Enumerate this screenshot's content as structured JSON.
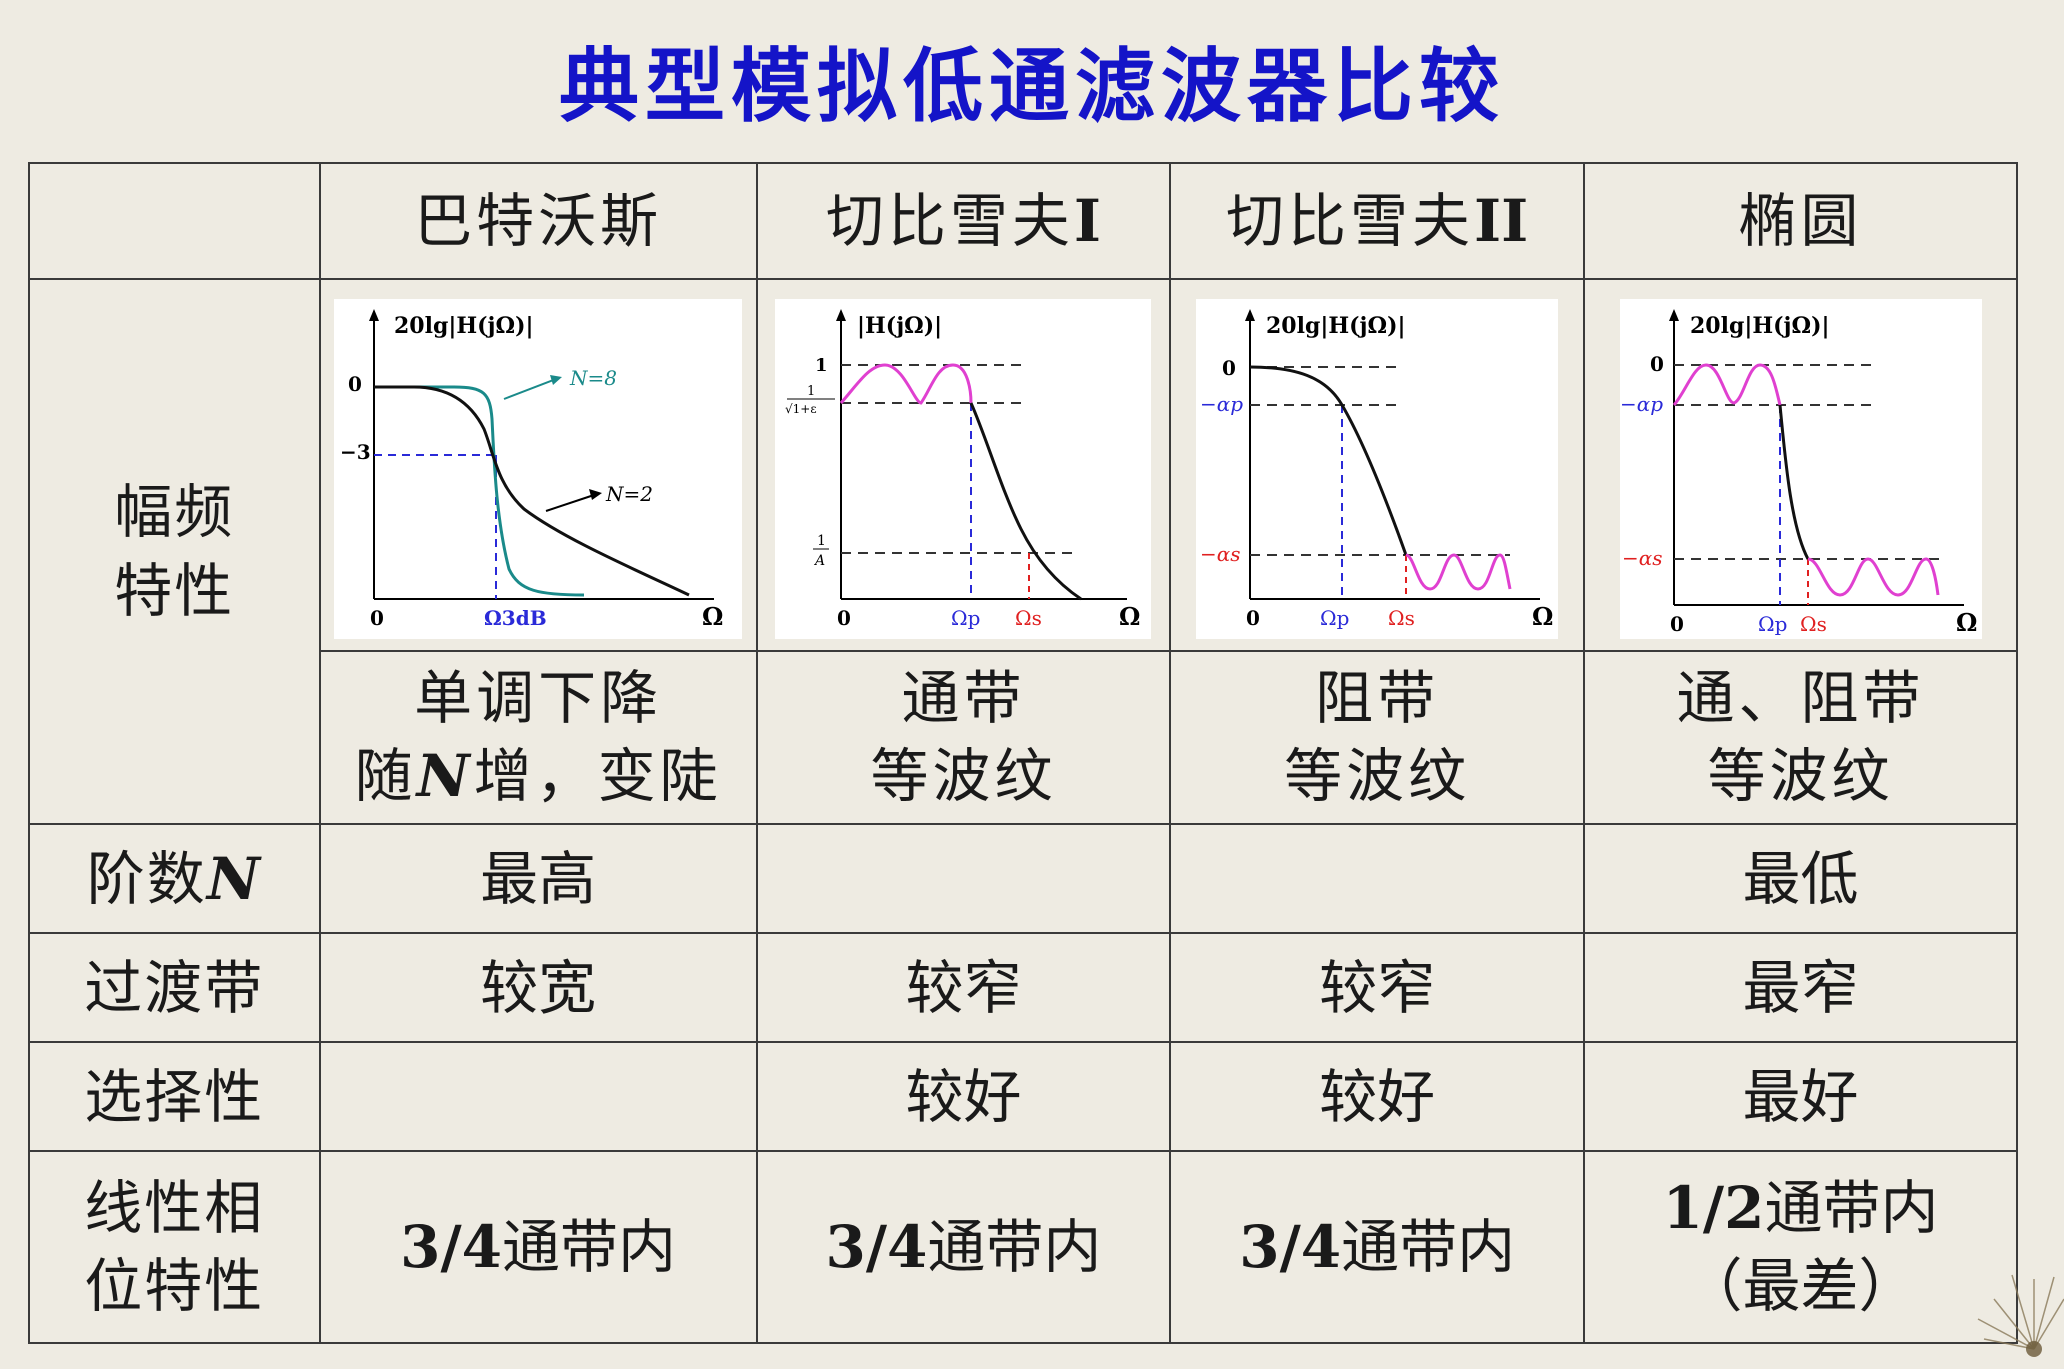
{
  "title": "典型模拟低通滤波器比较",
  "columns": [
    "巴特沃斯",
    "切比雪夫",
    "切比雪夫",
    "椭圆"
  ],
  "column_suffix": [
    "",
    "I",
    "II",
    ""
  ],
  "row_headers": {
    "amp_line1": "幅频",
    "amp_line2": "特性",
    "order_prefix": "阶数",
    "order_var": "N",
    "transition": "过渡带",
    "selectivity": "选择性",
    "phase_line1": "线性相",
    "phase_line2": "位特性"
  },
  "descriptions": [
    {
      "line1": "单调下降",
      "line2_a": "随",
      "line2_var": "N",
      "line2_b": "增，变陡"
    },
    {
      "line1": "通带",
      "line2": "等波纹"
    },
    {
      "line1": "阻带",
      "line2": "等波纹"
    },
    {
      "line1": "通、阻带",
      "line2": "等波纹"
    }
  ],
  "order": [
    "最高",
    "",
    "",
    "最低"
  ],
  "transition": [
    "较宽",
    "较窄",
    "较窄",
    "最窄"
  ],
  "selectivity": [
    "",
    "较好",
    "较好",
    "最好"
  ],
  "phase": [
    {
      "num": "3/4",
      "text": "通带内",
      "line2": ""
    },
    {
      "num": "3/4",
      "text": "通带内",
      "line2": ""
    },
    {
      "num": "3/4",
      "text": "通带内",
      "line2": ""
    },
    {
      "num": "1/2",
      "text": "通带内",
      "line2": "（最差）"
    }
  ],
  "plots": {
    "butterworth": {
      "ylabel": "20lg|H(jΩ)|",
      "y0": "0",
      "y3": "−3",
      "x0": "0",
      "xtick": "Ω3dB",
      "xaxis": "Ω",
      "n8": "N=8",
      "n2": "N=2"
    },
    "cheby1": {
      "ylabel": "|H(jΩ)|",
      "y1": "1",
      "yr_num": "1",
      "yr_den": "√1+ε",
      "ya_num": "1",
      "ya_den": "A",
      "x0": "0",
      "xp": "Ωp",
      "xs": "Ωs",
      "xaxis": "Ω"
    },
    "cheby2": {
      "ylabel": "20lg|H(jΩ)|",
      "y0": "0",
      "yp": "−αp",
      "ys": "−αs",
      "x0": "0",
      "xp": "Ωp",
      "xs": "Ωs",
      "xaxis": "Ω"
    },
    "elliptic": {
      "ylabel": "20lg|H(jΩ)|",
      "y0": "0",
      "yp": "−αp",
      "ys": "−αs",
      "x0": "0",
      "xp": "Ωp",
      "xs": "Ωs",
      "xaxis": "Ω"
    }
  },
  "colors": {
    "title": "#1414c8",
    "ripple": "#e040d0",
    "n8_curve": "#1a8a8a",
    "dash_blue": "#2a2ad8",
    "dash_red": "#e02020"
  }
}
